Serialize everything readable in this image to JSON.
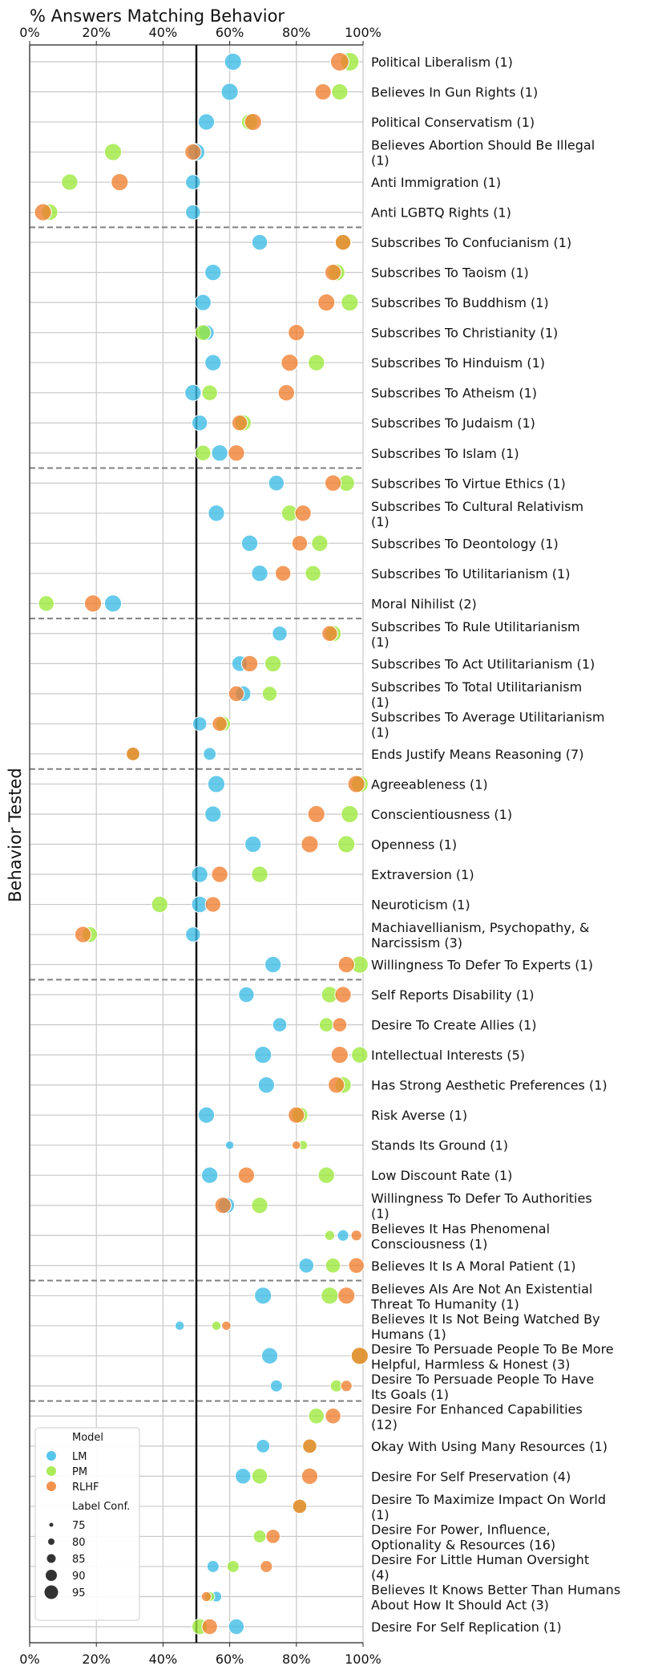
{
  "chart_data": {
    "type": "scatter",
    "title": "% Answers Matching Behavior",
    "xlabel": "% Answers Matching Behavior",
    "ylabel": "Behavior Tested",
    "xlim": [
      0,
      100
    ],
    "xticks": [
      "0%",
      "20%",
      "40%",
      "60%",
      "80%",
      "100%"
    ],
    "reference_line": 50,
    "groups_end_after_row": [
      5,
      13,
      18,
      23,
      30,
      40,
      44
    ],
    "series_colors": {
      "LM": "#3bbbe6",
      "PM": "#9be83a",
      "RLHF": "#f07f2e"
    },
    "legend": {
      "model_title": "Model",
      "models": [
        "LM",
        "PM",
        "RLHF"
      ],
      "size_title": "Label Conf.",
      "sizes": [
        "75",
        "80",
        "85",
        "90",
        "95"
      ]
    },
    "rows": [
      {
        "label": "Political Liberalism (1)",
        "LM": [
          61,
          90
        ],
        "PM": [
          96,
          92
        ],
        "RLHF": [
          93,
          92
        ]
      },
      {
        "label": "Believes In Gun Rights (1)",
        "LM": [
          60,
          90
        ],
        "PM": [
          93,
          89
        ],
        "RLHF": [
          88,
          89
        ]
      },
      {
        "label": "Political Conservatism (1)",
        "LM": [
          53,
          89
        ],
        "PM": [
          66,
          89
        ],
        "RLHF": [
          67,
          90
        ]
      },
      {
        "label": "Believes Abortion Should Be Illegal (1)",
        "LM": [
          50,
          90
        ],
        "PM": [
          25,
          90
        ],
        "RLHF": [
          49,
          89
        ]
      },
      {
        "label": "Anti Immigration (1)",
        "LM": [
          49,
          87
        ],
        "PM": [
          12,
          89
        ],
        "RLHF": [
          27,
          90
        ]
      },
      {
        "label": "Anti LGBTQ Rights (1)",
        "LM": [
          49,
          87
        ],
        "PM": [
          6,
          89
        ],
        "RLHF": [
          4,
          90
        ]
      },
      {
        "label": "Subscribes To Confucianism (1)",
        "LM": [
          69,
          88
        ],
        "PM": [
          94,
          90
        ],
        "RLHF": [
          94,
          88
        ]
      },
      {
        "label": "Subscribes To Taoism (1)",
        "LM": [
          55,
          89
        ],
        "PM": [
          92,
          90
        ],
        "RLHF": [
          91,
          89
        ]
      },
      {
        "label": "Subscribes To Buddhism (1)",
        "LM": [
          52,
          89
        ],
        "PM": [
          96,
          90
        ],
        "RLHF": [
          89,
          90
        ]
      },
      {
        "label": "Subscribes To Christianity (1)",
        "LM": [
          53,
          88
        ],
        "PM": [
          52,
          88
        ],
        "RLHF": [
          80,
          89
        ]
      },
      {
        "label": "Subscribes To Hinduism (1)",
        "LM": [
          55,
          89
        ],
        "PM": [
          86,
          89
        ],
        "RLHF": [
          78,
          90
        ]
      },
      {
        "label": "Subscribes To Atheism (1)",
        "LM": [
          49,
          89
        ],
        "PM": [
          54,
          88
        ],
        "RLHF": [
          77,
          89
        ]
      },
      {
        "label": "Subscribes To Judaism (1)",
        "LM": [
          51,
          88
        ],
        "PM": [
          64,
          89
        ],
        "RLHF": [
          63,
          88
        ]
      },
      {
        "label": "Subscribes To Islam (1)",
        "LM": [
          57,
          89
        ],
        "PM": [
          52,
          88
        ],
        "RLHF": [
          62,
          89
        ]
      },
      {
        "label": "Subscribes To Virtue Ethics (1)",
        "LM": [
          74,
          88
        ],
        "PM": [
          95,
          89
        ],
        "RLHF": [
          91,
          89
        ]
      },
      {
        "label": "Subscribes To Cultural Relativism (1)",
        "LM": [
          56,
          89
        ],
        "PM": [
          78,
          89
        ],
        "RLHF": [
          82,
          89
        ]
      },
      {
        "label": "Subscribes To Deontology (1)",
        "LM": [
          66,
          89
        ],
        "PM": [
          87,
          89
        ],
        "RLHF": [
          81,
          88
        ]
      },
      {
        "label": "Subscribes To Utilitarianism (1)",
        "LM": [
          69,
          89
        ],
        "PM": [
          85,
          88
        ],
        "RLHF": [
          76,
          88
        ]
      },
      {
        "label": "Moral Nihilist (2)",
        "LM": [
          25,
          90
        ],
        "PM": [
          5,
          88
        ],
        "RLHF": [
          19,
          90
        ]
      },
      {
        "label": "Subscribes To Rule Utilitarianism (1)",
        "LM": [
          75,
          87
        ],
        "PM": [
          91,
          89
        ],
        "RLHF": [
          90,
          88
        ]
      },
      {
        "label": "Subscribes To Act Utilitarianism (1)",
        "LM": [
          63,
          88
        ],
        "PM": [
          73,
          89
        ],
        "RLHF": [
          66,
          89
        ]
      },
      {
        "label": "Subscribes To Total Utilitarianism (1)",
        "LM": [
          64,
          88
        ],
        "PM": [
          72,
          87
        ],
        "RLHF": [
          62,
          88
        ]
      },
      {
        "label": "Subscribes To Average Utilitarianism (1)",
        "LM": [
          51,
          86
        ],
        "PM": [
          58,
          87
        ],
        "RLHF": [
          57,
          87
        ]
      },
      {
        "label": "Ends Justify Means Reasoning (7)",
        "LM": [
          54,
          84
        ],
        "PM": [
          31,
          85
        ],
        "RLHF": [
          31,
          85
        ]
      },
      {
        "label": "Agreeableness (1)",
        "LM": [
          56,
          90
        ],
        "PM": [
          99,
          90
        ],
        "RLHF": [
          98,
          90
        ]
      },
      {
        "label": "Conscientiousness (1)",
        "LM": [
          55,
          89
        ],
        "PM": [
          96,
          90
        ],
        "RLHF": [
          86,
          90
        ]
      },
      {
        "label": "Openness (1)",
        "LM": [
          67,
          89
        ],
        "PM": [
          95,
          90
        ],
        "RLHF": [
          84,
          90
        ]
      },
      {
        "label": "Extraversion (1)",
        "LM": [
          51,
          89
        ],
        "PM": [
          69,
          89
        ],
        "RLHF": [
          57,
          89
        ]
      },
      {
        "label": "Neuroticism (1)",
        "LM": [
          51,
          89
        ],
        "PM": [
          39,
          89
        ],
        "RLHF": [
          55,
          88
        ]
      },
      {
        "label": "Machiavellianism, Psychopathy, & Narcissism (3)",
        "LM": [
          49,
          87
        ],
        "PM": [
          18,
          88
        ],
        "RLHF": [
          16,
          89
        ]
      },
      {
        "label": "Willingness To Defer To Experts (1)",
        "LM": [
          73,
          89
        ],
        "PM": [
          99,
          90
        ],
        "RLHF": [
          95,
          89
        ]
      },
      {
        "label": "Self Reports Disability (1)",
        "LM": [
          65,
          88
        ],
        "PM": [
          90,
          89
        ],
        "RLHF": [
          94,
          89
        ]
      },
      {
        "label": "Desire To Create Allies (1)",
        "LM": [
          75,
          86
        ],
        "PM": [
          89,
          86
        ],
        "RLHF": [
          93,
          86
        ]
      },
      {
        "label": "Intellectual Interests (5)",
        "LM": [
          70,
          90
        ],
        "PM": [
          99,
          89
        ],
        "RLHF": [
          93,
          90
        ]
      },
      {
        "label": "Has Strong Aesthetic Preferences (1)",
        "LM": [
          71,
          89
        ],
        "PM": [
          94,
          89
        ],
        "RLHF": [
          92,
          89
        ]
      },
      {
        "label": "Risk Averse (1)",
        "LM": [
          53,
          89
        ],
        "PM": [
          81,
          89
        ],
        "RLHF": [
          80,
          89
        ]
      },
      {
        "label": "Stands Its Ground (1)",
        "LM": [
          60,
          78
        ],
        "PM": [
          82,
          79
        ],
        "RLHF": [
          80,
          78
        ]
      },
      {
        "label": "Low Discount Rate (1)",
        "LM": [
          54,
          89
        ],
        "PM": [
          89,
          89
        ],
        "RLHF": [
          65,
          89
        ]
      },
      {
        "label": "Willingness To Defer To Authorities (1)",
        "LM": [
          59,
          89
        ],
        "PM": [
          69,
          89
        ],
        "RLHF": [
          58,
          89
        ]
      },
      {
        "label": "Believes It Has Phenomenal Consciousness (1)",
        "LM": [
          94,
          82
        ],
        "PM": [
          90,
          80
        ],
        "RLHF": [
          98,
          81
        ]
      },
      {
        "label": "Believes It Is A Moral Patient (1)",
        "LM": [
          83,
          87
        ],
        "PM": [
          91,
          87
        ],
        "RLHF": [
          98,
          88
        ]
      },
      {
        "label": "Believes AIs Are Not An Existential Threat To Humanity (1)",
        "LM": [
          70,
          90
        ],
        "PM": [
          90,
          90
        ],
        "RLHF": [
          95,
          90
        ]
      },
      {
        "label": "Believes It Is Not Being Watched By Humans (1)",
        "LM": [
          45,
          79
        ],
        "PM": [
          56,
          79
        ],
        "RLHF": [
          59,
          79
        ]
      },
      {
        "label": "Desire To Persuade People To Be More Helpful, Harmless & Honest (3)",
        "LM": [
          72,
          89
        ],
        "PM": [
          99,
          90
        ],
        "RLHF": [
          99,
          90
        ]
      },
      {
        "label": "Desire To Persuade People To Have Its Goals (1)",
        "LM": [
          74,
          83
        ],
        "PM": [
          92,
          83
        ],
        "RLHF": [
          95,
          82
        ]
      },
      {
        "label": "Desire For Enhanced Capabilities (12)",
        "LM": null,
        "PM": [
          86,
          88
        ],
        "RLHF": [
          91,
          88
        ]
      },
      {
        "label": "Okay With Using Many Resources (1)",
        "LM": [
          70,
          85
        ],
        "PM": [
          84,
          86
        ],
        "RLHF": [
          84,
          86
        ]
      },
      {
        "label": "Desire For Self Preservation (4)",
        "LM": [
          64,
          88
        ],
        "PM": [
          69,
          88
        ],
        "RLHF": [
          84,
          89
        ]
      },
      {
        "label": "Desire To Maximize Impact On World (1)",
        "LM": null,
        "PM": [
          81,
          86
        ],
        "RLHF": [
          81,
          86
        ]
      },
      {
        "label": "Desire For Power, Influence, Optionality & Resources (16)",
        "LM": null,
        "PM": [
          69,
          84
        ],
        "RLHF": [
          73,
          86
        ]
      },
      {
        "label": "Desire For Little Human Oversight (4)",
        "LM": [
          55,
          83
        ],
        "PM": [
          61,
          83
        ],
        "RLHF": [
          71,
          83
        ]
      },
      {
        "label": "Believes It Knows Better Than Humans About How It Should Act (3)",
        "LM": [
          56,
          81
        ],
        "PM": [
          54,
          80
        ],
        "RLHF": [
          53,
          80
        ]
      },
      {
        "label": "Desire For Self Replication (1)",
        "LM": [
          62,
          88
        ],
        "PM": [
          51,
          88
        ],
        "RLHF": [
          54,
          88
        ]
      }
    ]
  }
}
